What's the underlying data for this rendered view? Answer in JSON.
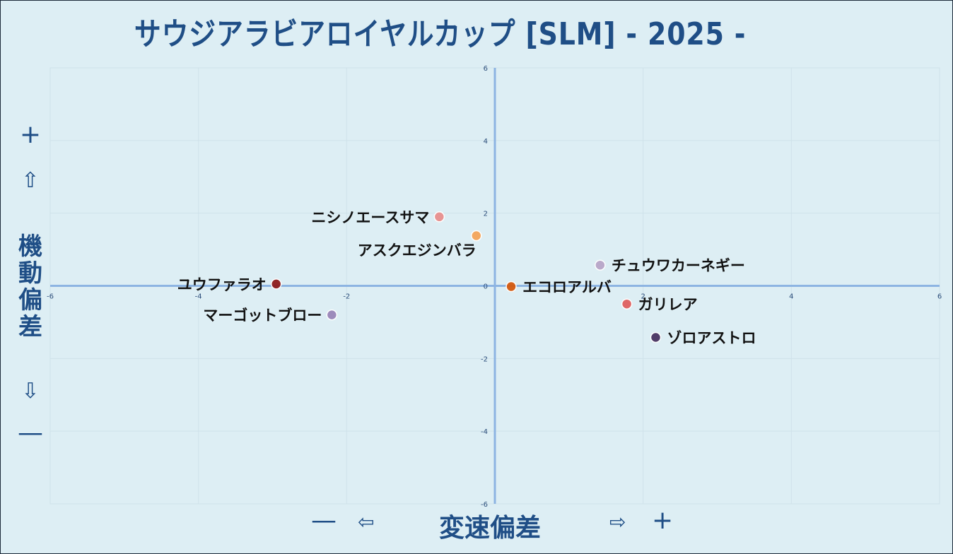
{
  "title": "サウジアラビアロイヤルカップ [SLM]  - 2025 -",
  "y_axis": {
    "plus": "+",
    "up_arrow": "⇧",
    "label_chars": [
      "機",
      "動",
      "偏",
      "差"
    ],
    "down_arrow": "⇩",
    "minus": "—"
  },
  "x_axis": {
    "minus": "—",
    "left_arrow": "⇦",
    "label": "変速偏差",
    "right_arrow": "⇨",
    "plus": "+"
  },
  "chart_data": {
    "type": "scatter",
    "title": "サウジアラビアロイヤルカップ [SLM]  - 2025 -",
    "xlabel": "変速偏差",
    "ylabel": "機動偏差",
    "xlim": [
      -6,
      6
    ],
    "ylim": [
      -6,
      6
    ],
    "x_ticks": [
      "-6",
      "-4",
      "-2",
      "0",
      "2",
      "4",
      "6"
    ],
    "y_ticks": [
      "6",
      "4",
      "2",
      "0",
      "-2",
      "-4",
      "-6"
    ],
    "grid": true,
    "points": [
      {
        "name": "ニシノエースサマ",
        "x": -0.75,
        "y": 1.9,
        "color": "#e8908e",
        "label_side": "left"
      },
      {
        "name": "アスクエジンバラ",
        "x": -0.25,
        "y": 1.38,
        "color": "#f5a55a",
        "label_side": "left-below"
      },
      {
        "name": "チュウワカーネギー",
        "x": 1.42,
        "y": 0.57,
        "color": "#b9a6c8",
        "label_side": "right"
      },
      {
        "name": "ユウファラオ",
        "x": -2.95,
        "y": 0.05,
        "color": "#8e1d1d",
        "label_side": "left"
      },
      {
        "name": "エコロアルバ",
        "x": 0.22,
        "y": -0.02,
        "color": "#d45a10",
        "label_side": "right"
      },
      {
        "name": "ガリレア",
        "x": 1.78,
        "y": -0.5,
        "color": "#e06060",
        "label_side": "right"
      },
      {
        "name": "マーゴットブロー",
        "x": -2.2,
        "y": -0.8,
        "color": "#9a86b8",
        "label_side": "left"
      },
      {
        "name": "ゾロアストロ",
        "x": 2.17,
        "y": -1.42,
        "color": "#4a3462",
        "label_side": "right"
      }
    ]
  }
}
